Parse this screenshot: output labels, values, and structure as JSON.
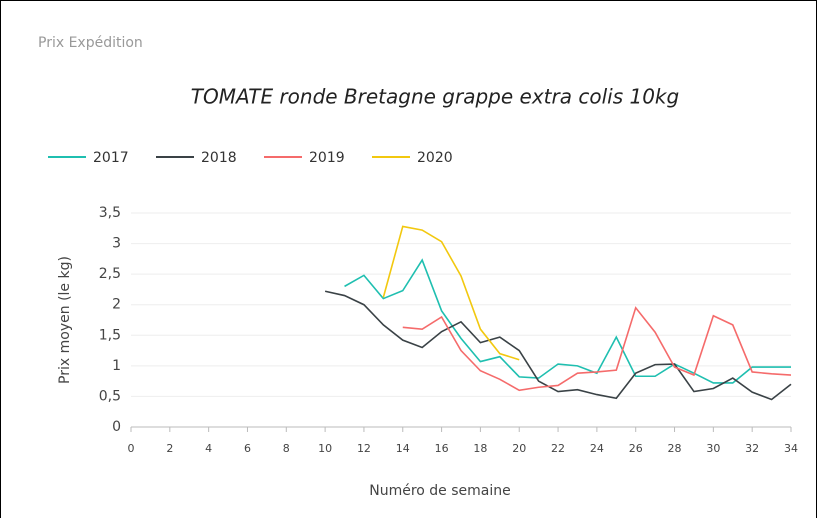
{
  "panel_title": "Prix Expédition",
  "chart_data": {
    "type": "line",
    "title": "TOMATE ronde Bretagne grappe extra colis 10kg",
    "x_label": "Numéro de semaine",
    "y_label": "Prix moyen  (le kg)",
    "x": [
      0,
      1,
      2,
      3,
      4,
      5,
      6,
      7,
      8,
      9,
      10,
      11,
      12,
      13,
      14,
      15,
      16,
      17,
      18,
      19,
      20,
      21,
      22,
      23,
      24,
      25,
      26,
      27,
      28,
      29,
      30,
      31,
      32,
      33,
      34
    ],
    "series": [
      {
        "name": "2017",
        "color": "#1fbfb0",
        "values": [
          null,
          null,
          null,
          null,
          null,
          null,
          null,
          null,
          null,
          null,
          null,
          2.3,
          2.48,
          2.1,
          2.23,
          2.73,
          1.9,
          1.45,
          1.07,
          1.15,
          0.82,
          0.8,
          1.03,
          1.0,
          0.88,
          1.47,
          0.83,
          0.83,
          1.03,
          0.88,
          0.72,
          0.72,
          0.98,
          0.98,
          0.98
        ]
      },
      {
        "name": "2018",
        "color": "#3a4246",
        "values": [
          null,
          null,
          null,
          null,
          null,
          null,
          null,
          null,
          null,
          null,
          2.22,
          2.15,
          2.0,
          1.67,
          1.42,
          1.3,
          1.56,
          1.72,
          1.38,
          1.47,
          1.25,
          0.75,
          0.58,
          0.61,
          0.53,
          0.47,
          0.88,
          1.02,
          1.03,
          0.58,
          0.63,
          0.8,
          0.57,
          0.45,
          0.7
        ]
      },
      {
        "name": "2019",
        "color": "#f56b6b",
        "values": [
          null,
          null,
          null,
          null,
          null,
          null,
          null,
          null,
          null,
          null,
          null,
          null,
          null,
          null,
          1.63,
          1.6,
          1.8,
          1.25,
          0.92,
          0.78,
          0.6,
          0.65,
          0.68,
          0.88,
          0.9,
          0.93,
          1.95,
          1.55,
          0.98,
          0.85,
          1.82,
          1.67,
          0.9,
          0.87,
          0.85
        ]
      },
      {
        "name": "2020",
        "color": "#f2c80f",
        "values": [
          null,
          null,
          null,
          null,
          null,
          null,
          null,
          null,
          null,
          null,
          null,
          null,
          null,
          2.12,
          3.28,
          3.22,
          3.03,
          2.47,
          1.6,
          1.2,
          1.1,
          null,
          null,
          null,
          null,
          null,
          null,
          null,
          null,
          null,
          null,
          null,
          null,
          null,
          null
        ]
      }
    ],
    "xlim": [
      0,
      34
    ],
    "xticks": [
      0,
      2,
      4,
      6,
      8,
      10,
      12,
      14,
      16,
      18,
      20,
      22,
      24,
      26,
      28,
      30,
      32,
      34
    ],
    "ylim": [
      0,
      3.5
    ],
    "yticks": [
      0,
      {
        "value": 0.5,
        "label": "0,5"
      },
      1,
      {
        "value": 1.5,
        "label": "1,5"
      },
      2,
      {
        "value": 2.5,
        "label": "2,5"
      },
      3,
      {
        "value": 3.5,
        "label": "3,5"
      }
    ],
    "grid": true,
    "legend": "top-left"
  }
}
